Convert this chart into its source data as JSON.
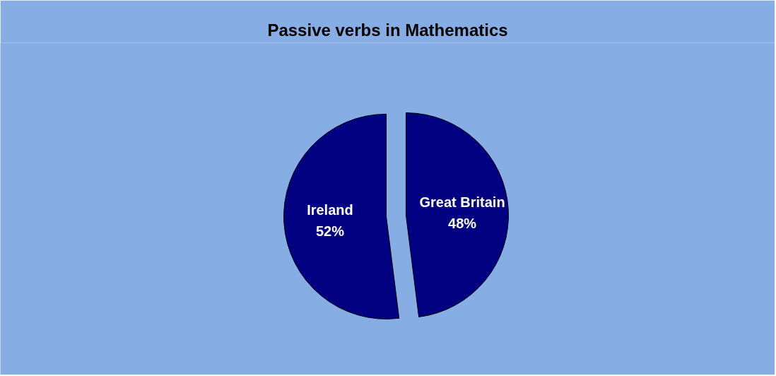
{
  "chart_data": {
    "type": "pie",
    "title": "Passive verbs in Mathematics",
    "categories": [
      "Great Britain",
      "Ireland"
    ],
    "values": [
      48,
      52
    ],
    "value_labels": [
      "48%",
      "52%"
    ],
    "colors": [
      "#000080",
      "#000080"
    ]
  }
}
